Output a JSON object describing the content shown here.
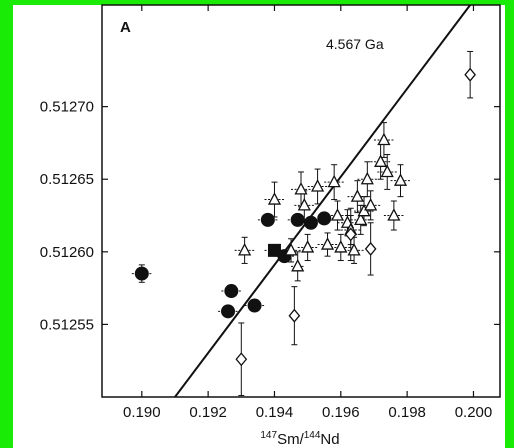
{
  "colors": {
    "frame": "#19ea06",
    "ink": "#111111",
    "background": "#ffffff"
  },
  "chart_data": {
    "type": "scatter",
    "panel_label": "A",
    "xlabel": {
      "sup1": "147",
      "base1": "Sm/",
      "sup2": "144",
      "base2": "Nd"
    },
    "xlim": [
      0.1888,
      0.2008
    ],
    "ylim": [
      0.5125,
      0.51277
    ],
    "x_ticks": [
      {
        "v": 0.19,
        "label": "0.190"
      },
      {
        "v": 0.192,
        "label": "0.192"
      },
      {
        "v": 0.194,
        "label": "0.194"
      },
      {
        "v": 0.196,
        "label": "0.196"
      },
      {
        "v": 0.198,
        "label": "0.198"
      },
      {
        "v": 0.2,
        "label": "0.200"
      }
    ],
    "y_ticks": [
      {
        "v": 0.51255,
        "label": "0.51255"
      },
      {
        "v": 0.5126,
        "label": "0.51260"
      },
      {
        "v": 0.51265,
        "label": "0.51265"
      },
      {
        "v": 0.5127,
        "label": "0.51270"
      }
    ],
    "isochron": {
      "label": "4.567 Ga",
      "x1": 0.191,
      "y1": 0.5125,
      "x2": 0.1999,
      "y2": 0.51277
    },
    "series": [
      {
        "marker": "filled-circle",
        "points": [
          {
            "x": 0.19,
            "y": 0.512585,
            "ex": 0.0003,
            "ey": 6e-06
          },
          {
            "x": 0.1927,
            "y": 0.512573,
            "ex": 0.0003,
            "ey": 0
          },
          {
            "x": 0.1926,
            "y": 0.512559,
            "ex": 0.0003,
            "ey": 0
          },
          {
            "x": 0.1934,
            "y": 0.512563,
            "ex": 0.0003,
            "ey": 0
          },
          {
            "x": 0.1938,
            "y": 0.512622,
            "ex": 0.0003,
            "ey": 0
          },
          {
            "x": 0.1943,
            "y": 0.512597,
            "ex": 0.0003,
            "ey": 0
          },
          {
            "x": 0.1947,
            "y": 0.512622,
            "ex": 0.0003,
            "ey": 0
          },
          {
            "x": 0.1951,
            "y": 0.51262,
            "ex": 0.0003,
            "ey": 0
          },
          {
            "x": 0.1955,
            "y": 0.512623,
            "ex": 0.0003,
            "ey": 0
          }
        ]
      },
      {
        "marker": "filled-square",
        "points": [
          {
            "x": 0.194,
            "y": 0.512601,
            "ex": 0.0003,
            "ey": 0
          }
        ]
      },
      {
        "marker": "open-triangle",
        "points": [
          {
            "x": 0.1931,
            "y": 0.512601,
            "ex": 0.0003,
            "ey": 9e-06
          },
          {
            "x": 0.194,
            "y": 0.512636,
            "ex": 0.0003,
            "ey": 1.2e-05
          },
          {
            "x": 0.1945,
            "y": 0.512601,
            "ex": 0.0003,
            "ey": 8e-06
          },
          {
            "x": 0.1947,
            "y": 0.51259,
            "ex": 0.0002,
            "ey": 1e-05
          },
          {
            "x": 0.1948,
            "y": 0.512643,
            "ex": 0.0003,
            "ey": 1.2e-05
          },
          {
            "x": 0.1949,
            "y": 0.512632,
            "ex": 0.0003,
            "ey": 1e-05
          },
          {
            "x": 0.195,
            "y": 0.512603,
            "ex": 0.0003,
            "ey": 9e-06
          },
          {
            "x": 0.1953,
            "y": 0.512645,
            "ex": 0.0003,
            "ey": 1.2e-05
          },
          {
            "x": 0.1956,
            "y": 0.512605,
            "ex": 0.0003,
            "ey": 8e-06
          },
          {
            "x": 0.1958,
            "y": 0.512648,
            "ex": 0.0003,
            "ey": 1.2e-05
          },
          {
            "x": 0.1959,
            "y": 0.512625,
            "ex": 0.0003,
            "ey": 1e-05
          },
          {
            "x": 0.196,
            "y": 0.512603,
            "ex": 0.0003,
            "ey": 9e-06
          },
          {
            "x": 0.1962,
            "y": 0.51262,
            "ex": 0.0003,
            "ey": 9e-06
          },
          {
            "x": 0.1963,
            "y": 0.512615,
            "ex": 0.0003,
            "ey": 1e-05
          },
          {
            "x": 0.1964,
            "y": 0.512601,
            "ex": 0.0003,
            "ey": 9e-06
          },
          {
            "x": 0.1965,
            "y": 0.512638,
            "ex": 0.0003,
            "ey": 1.1e-05
          },
          {
            "x": 0.1966,
            "y": 0.512622,
            "ex": 0.0003,
            "ey": 1e-05
          },
          {
            "x": 0.1967,
            "y": 0.512628,
            "ex": 0.0003,
            "ey": 1e-05
          },
          {
            "x": 0.1968,
            "y": 0.51265,
            "ex": 0.0003,
            "ey": 1.2e-05
          },
          {
            "x": 0.1969,
            "y": 0.512632,
            "ex": 0.0003,
            "ey": 1e-05
          },
          {
            "x": 0.1972,
            "y": 0.512662,
            "ex": 0.0003,
            "ey": 1.2e-05
          },
          {
            "x": 0.1973,
            "y": 0.512677,
            "ex": 0.0003,
            "ey": 1.2e-05
          },
          {
            "x": 0.1974,
            "y": 0.512655,
            "ex": 0.0003,
            "ey": 1.2e-05
          },
          {
            "x": 0.1976,
            "y": 0.512625,
            "ex": 0.0003,
            "ey": 1e-05
          },
          {
            "x": 0.1978,
            "y": 0.512649,
            "ex": 0.0003,
            "ey": 1.1e-05
          }
        ]
      },
      {
        "marker": "open-diamond",
        "points": [
          {
            "x": 0.193,
            "y": 0.512526,
            "ex": 0,
            "ey": 2.5e-05
          },
          {
            "x": 0.1946,
            "y": 0.512556,
            "ex": 0,
            "ey": 2e-05
          },
          {
            "x": 0.1963,
            "y": 0.512612,
            "ex": 0,
            "ey": 1.8e-05
          },
          {
            "x": 0.1969,
            "y": 0.512602,
            "ex": 0,
            "ey": 1.8e-05
          },
          {
            "x": 0.1999,
            "y": 0.512722,
            "ex": 0,
            "ey": 1.6e-05
          }
        ]
      }
    ]
  }
}
